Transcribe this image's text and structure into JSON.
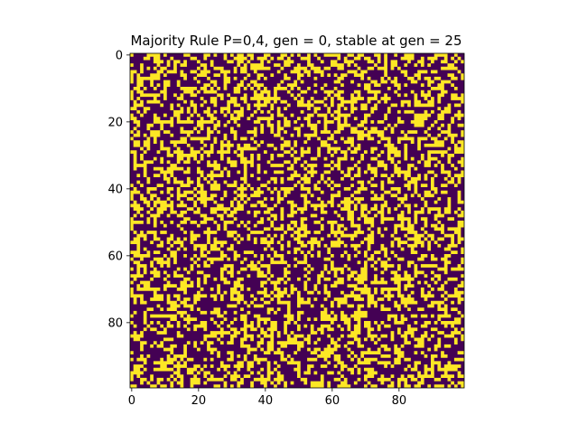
{
  "chart_data": {
    "type": "heatmap",
    "title": "Majority Rule P=0,4, gen = 0, stable at gen = 25",
    "grid_size": [
      100,
      100
    ],
    "colors": {
      "off": "#440154",
      "on": "#fde725"
    },
    "fill_fraction_on": 0.4,
    "x_ticks": [
      0,
      20,
      40,
      60,
      80
    ],
    "y_ticks": [
      0,
      20,
      40,
      60,
      80
    ],
    "x_tick_labels": [
      "0",
      "20",
      "40",
      "60",
      "80"
    ],
    "y_tick_labels": [
      "0",
      "20",
      "40",
      "60",
      "80"
    ],
    "xlim": [
      -0.5,
      99.5
    ],
    "ylim": [
      99.5,
      -0.5
    ],
    "grid": false
  }
}
